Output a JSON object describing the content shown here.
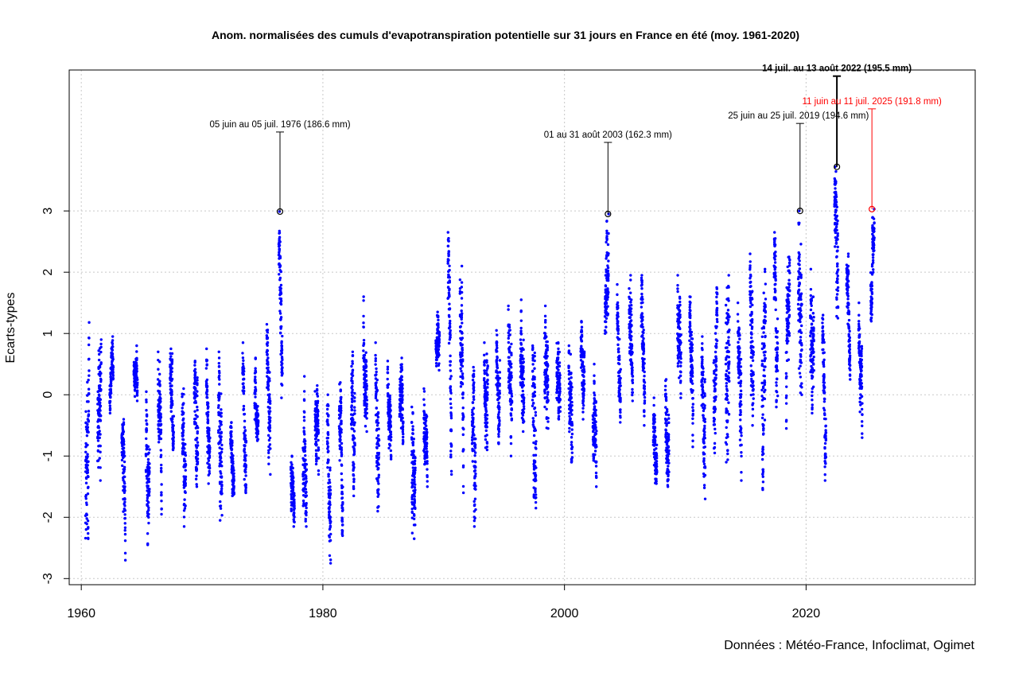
{
  "chart_data": {
    "type": "scatter",
    "title": "Anom. normalisées des cumuls d'evapotranspiration potentielle sur 31 jours en France en été (moy. 1961-2020)",
    "ylabel": "Ecarts-types",
    "xlabel": "",
    "source": "Données : Météo-France, Infoclimat, Ogimet",
    "xlim": [
      1959,
      2034
    ],
    "ylim": [
      -3.1,
      5.3
    ],
    "xticks": [
      1960,
      1980,
      2000,
      2020
    ],
    "yticks": [
      -3,
      -2,
      -1,
      0,
      1,
      2,
      3
    ],
    "grid": true,
    "point_color": "#0000ff",
    "season_series": [
      {
        "year": 1960,
        "min": -2.35,
        "max": 1.18,
        "start": -1.7,
        "end": 0.3
      },
      {
        "year": 1961,
        "min": -1.4,
        "max": 0.9,
        "start": -0.3,
        "end": 0.7
      },
      {
        "year": 1962,
        "min": -0.3,
        "max": 0.95,
        "start": 0.0,
        "end": 0.8
      },
      {
        "year": 1963,
        "min": -2.7,
        "max": -0.4,
        "start": -1.0,
        "end": -2.4
      },
      {
        "year": 1964,
        "min": -0.1,
        "max": 0.8,
        "start": 0.5,
        "end": 0.2
      },
      {
        "year": 1965,
        "min": -2.45,
        "max": 0.05,
        "start": -1.2,
        "end": -2.2
      },
      {
        "year": 1966,
        "min": -1.95,
        "max": 0.7,
        "start": 0.3,
        "end": -1.5
      },
      {
        "year": 1967,
        "min": -0.9,
        "max": 0.75,
        "start": 0.2,
        "end": -0.5
      },
      {
        "year": 1968,
        "min": -2.15,
        "max": 0.1,
        "start": -0.5,
        "end": -1.8
      },
      {
        "year": 1969,
        "min": -1.5,
        "max": 0.55,
        "start": 0.1,
        "end": -1.2
      },
      {
        "year": 1970,
        "min": -1.45,
        "max": 0.75,
        "start": 0.3,
        "end": -1.0
      },
      {
        "year": 1971,
        "min": -2.05,
        "max": 0.7,
        "start": 0.1,
        "end": -1.6
      },
      {
        "year": 1972,
        "min": -1.65,
        "max": -0.45,
        "start": -0.8,
        "end": -1.4
      },
      {
        "year": 1973,
        "min": -1.6,
        "max": 0.85,
        "start": 0.5,
        "end": -1.0
      },
      {
        "year": 1974,
        "min": -0.75,
        "max": 0.6,
        "start": 0.2,
        "end": -0.3
      },
      {
        "year": 1975,
        "min": -1.3,
        "max": 1.15,
        "start": 0.8,
        "end": -0.8
      },
      {
        "year": 1976,
        "min": -0.05,
        "max": 2.99,
        "start": 2.5,
        "end": 0.3
      },
      {
        "year": 1977,
        "min": -2.15,
        "max": -1.0,
        "start": -1.4,
        "end": -1.9
      },
      {
        "year": 1978,
        "min": -2.15,
        "max": 0.3,
        "start": -0.5,
        "end": -1.5
      },
      {
        "year": 1979,
        "min": -1.3,
        "max": 0.15,
        "start": -0.3,
        "end": -1.0
      },
      {
        "year": 1980,
        "min": -2.75,
        "max": 0.0,
        "start": -1.0,
        "end": -2.3
      },
      {
        "year": 1981,
        "min": -2.3,
        "max": 0.2,
        "start": -0.6,
        "end": -1.9
      },
      {
        "year": 1982,
        "min": -1.65,
        "max": 0.7,
        "start": -0.3,
        "end": -1.2
      },
      {
        "year": 1983,
        "min": -0.6,
        "max": 1.6,
        "start": 0.8,
        "end": -0.2
      },
      {
        "year": 1984,
        "min": -1.9,
        "max": 0.85,
        "start": 0.3,
        "end": -1.2
      },
      {
        "year": 1985,
        "min": -1.05,
        "max": 0.55,
        "start": 0.1,
        "end": -0.6
      },
      {
        "year": 1986,
        "min": -0.8,
        "max": 0.6,
        "start": 0.0,
        "end": -0.4
      },
      {
        "year": 1987,
        "min": -2.35,
        "max": -0.2,
        "start": -0.9,
        "end": -1.9
      },
      {
        "year": 1988,
        "min": -1.5,
        "max": 0.1,
        "start": -0.5,
        "end": -1.0
      },
      {
        "year": 1989,
        "min": 0.4,
        "max": 1.35,
        "start": 0.8,
        "end": 0.6
      },
      {
        "year": 1990,
        "min": -1.3,
        "max": 2.65,
        "start": 2.0,
        "end": -0.5
      },
      {
        "year": 1991,
        "min": -1.6,
        "max": 2.1,
        "start": 1.6,
        "end": -0.8
      },
      {
        "year": 1992,
        "min": -2.15,
        "max": 0.45,
        "start": -0.3,
        "end": -1.7
      },
      {
        "year": 1993,
        "min": -0.9,
        "max": 0.85,
        "start": 0.3,
        "end": -0.4
      },
      {
        "year": 1994,
        "min": -0.8,
        "max": 1.05,
        "start": 0.5,
        "end": -0.3
      },
      {
        "year": 1995,
        "min": -1.0,
        "max": 1.45,
        "start": 0.8,
        "end": -0.5
      },
      {
        "year": 1996,
        "min": -0.6,
        "max": 1.55,
        "start": 1.0,
        "end": 0.0
      },
      {
        "year": 1997,
        "min": -1.85,
        "max": 0.8,
        "start": 0.1,
        "end": -1.5
      },
      {
        "year": 1998,
        "min": -0.55,
        "max": 1.45,
        "start": 0.8,
        "end": 0.0
      },
      {
        "year": 1999,
        "min": -0.4,
        "max": 0.85,
        "start": 0.4,
        "end": 0.0
      },
      {
        "year": 2000,
        "min": -1.1,
        "max": 0.8,
        "start": 0.3,
        "end": -0.6
      },
      {
        "year": 2001,
        "min": -0.4,
        "max": 1.2,
        "start": 0.6,
        "end": 0.0
      },
      {
        "year": 2002,
        "min": -1.5,
        "max": 0.5,
        "start": -0.2,
        "end": -1.2
      },
      {
        "year": 2003,
        "min": 1.0,
        "max": 2.95,
        "start": 1.5,
        "end": 2.7
      },
      {
        "year": 2004,
        "min": -0.45,
        "max": 1.8,
        "start": 1.2,
        "end": -0.2
      },
      {
        "year": 2005,
        "min": -0.1,
        "max": 1.95,
        "start": 1.4,
        "end": 0.3
      },
      {
        "year": 2006,
        "min": -0.5,
        "max": 1.95,
        "start": 1.5,
        "end": 0.0
      },
      {
        "year": 2007,
        "min": -1.45,
        "max": -0.05,
        "start": -0.6,
        "end": -1.0
      },
      {
        "year": 2008,
        "min": -1.5,
        "max": 0.25,
        "start": -0.3,
        "end": -1.0
      },
      {
        "year": 2009,
        "min": -0.05,
        "max": 1.95,
        "start": 0.8,
        "end": 0.3
      },
      {
        "year": 2010,
        "min": -0.85,
        "max": 1.6,
        "start": 1.0,
        "end": -0.3
      },
      {
        "year": 2011,
        "min": -1.7,
        "max": 0.95,
        "start": 0.3,
        "end": -1.2
      },
      {
        "year": 2012,
        "min": -0.95,
        "max": 1.75,
        "start": 0.3,
        "end": 0.9
      },
      {
        "year": 2013,
        "min": -1.1,
        "max": 1.95,
        "start": -0.4,
        "end": 1.2
      },
      {
        "year": 2014,
        "min": -1.4,
        "max": 1.5,
        "start": 0.5,
        "end": -1.0
      },
      {
        "year": 2015,
        "min": -0.5,
        "max": 2.3,
        "start": 1.8,
        "end": 0.2
      },
      {
        "year": 2016,
        "min": -1.55,
        "max": 2.05,
        "start": -0.5,
        "end": 1.2
      },
      {
        "year": 2017,
        "min": -0.2,
        "max": 2.65,
        "start": 2.1,
        "end": 0.3
      },
      {
        "year": 2018,
        "min": -0.55,
        "max": 2.25,
        "start": 0.5,
        "end": 1.8
      },
      {
        "year": 2019,
        "min": 0.0,
        "max": 3.0,
        "start": 1.0,
        "end": 0.8
      },
      {
        "year": 2020,
        "min": -0.3,
        "max": 2.05,
        "start": 1.4,
        "end": 0.2
      },
      {
        "year": 2021,
        "min": -1.4,
        "max": 1.3,
        "start": 0.8,
        "end": -1.0
      },
      {
        "year": 2022,
        "min": 1.25,
        "max": 3.72,
        "start": 2.5,
        "end": 1.6
      },
      {
        "year": 2023,
        "min": 0.25,
        "max": 2.3,
        "start": 2.0,
        "end": 0.5
      },
      {
        "year": 2024,
        "min": -0.7,
        "max": 1.5,
        "start": 0.5,
        "end": -0.4
      },
      {
        "year": 2025,
        "min": 1.2,
        "max": 3.03,
        "start": 1.3,
        "end": 2.9
      }
    ],
    "annotations": [
      {
        "text": "05 juin au 05 juil. 1976 (186.6 mm)",
        "x": 1976.45,
        "y": 2.99,
        "color": "#000000",
        "bold": false
      },
      {
        "text": "01 au 31 août 2003 (162.3 mm)",
        "x": 2003.6,
        "y": 2.95,
        "color": "#000000",
        "bold": false
      },
      {
        "text": "25 juin au 25 juil. 2019 (194.6 mm)",
        "x": 2019.5,
        "y": 3.0,
        "color": "#000000",
        "bold": false
      },
      {
        "text": "14 juil. au 13 août 2022 (195.5 mm)",
        "x": 2022.55,
        "y": 3.72,
        "color": "#000000",
        "bold": true
      },
      {
        "text": "11 juin au 11 juil. 2025 (191.8 mm)",
        "x": 2025.45,
        "y": 3.03,
        "color": "#ff0000",
        "bold": false
      }
    ]
  }
}
